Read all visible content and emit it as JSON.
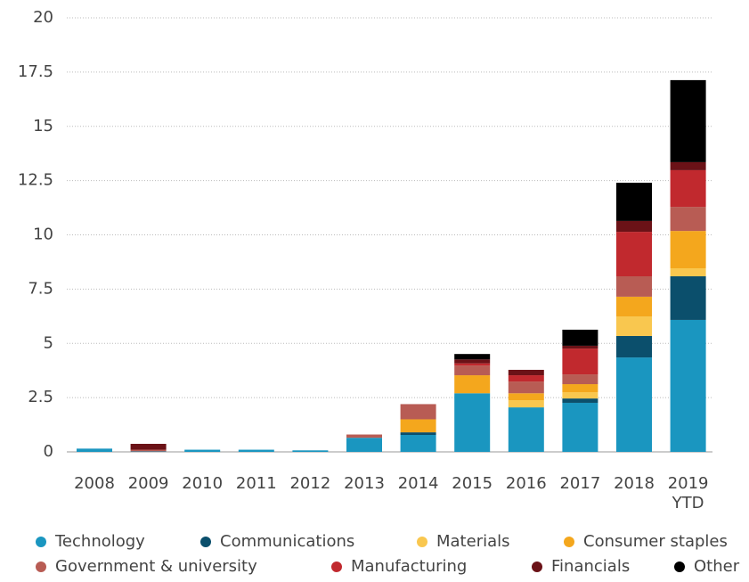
{
  "chart_data": {
    "type": "stacked_bar",
    "categories": [
      "2008",
      "2009",
      "2010",
      "2011",
      "2012",
      "2013",
      "2014",
      "2015",
      "2016",
      "2017",
      "2018",
      "2019 YTD"
    ],
    "series": [
      {
        "name": "Technology",
        "color": "#1a96c0",
        "values": [
          0.15,
          0.02,
          0.1,
          0.1,
          0.07,
          0.65,
          0.78,
          2.7,
          2.05,
          2.26,
          4.35,
          6.08
        ]
      },
      {
        "name": "Communications",
        "color": "#0b4f6c",
        "values": [
          0,
          0,
          0,
          0,
          0,
          0,
          0.12,
          0,
          0,
          0.2,
          0.99,
          2.01
        ]
      },
      {
        "name": "Materials",
        "color": "#f9c74f",
        "values": [
          0,
          0,
          0,
          0,
          0,
          0,
          0,
          0,
          0.33,
          0.29,
          0.9,
          0.37
        ]
      },
      {
        "name": "Consumer staples",
        "color": "#f4a71d",
        "values": [
          0,
          0,
          0,
          0,
          0,
          0,
          0.6,
          0.83,
          0.32,
          0.37,
          0.91,
          1.72
        ]
      },
      {
        "name": "Government & university",
        "color": "#b85c54",
        "values": [
          0,
          0.08,
          0,
          0,
          0,
          0.15,
          0.7,
          0.45,
          0.54,
          0.45,
          0.94,
          1.11
        ]
      },
      {
        "name": "Manufacturing",
        "color": "#c1292e",
        "values": [
          0,
          0,
          0,
          0,
          0,
          0,
          0,
          0.1,
          0.29,
          1.19,
          2.05,
          1.69
        ]
      },
      {
        "name": "Financials",
        "color": "#6b1217",
        "values": [
          0,
          0.27,
          0,
          0,
          0,
          0,
          0,
          0.18,
          0.25,
          0.13,
          0.5,
          0.37
        ]
      },
      {
        "name": "Other",
        "color": "#000000",
        "values": [
          0,
          0,
          0,
          0,
          0,
          0,
          0,
          0.25,
          0,
          0.74,
          1.76,
          3.78
        ]
      }
    ],
    "ylim": [
      0,
      20
    ],
    "yticks": [
      0,
      2.5,
      5,
      7.5,
      10,
      12.5,
      15,
      17.5,
      20
    ],
    "grid": true
  }
}
